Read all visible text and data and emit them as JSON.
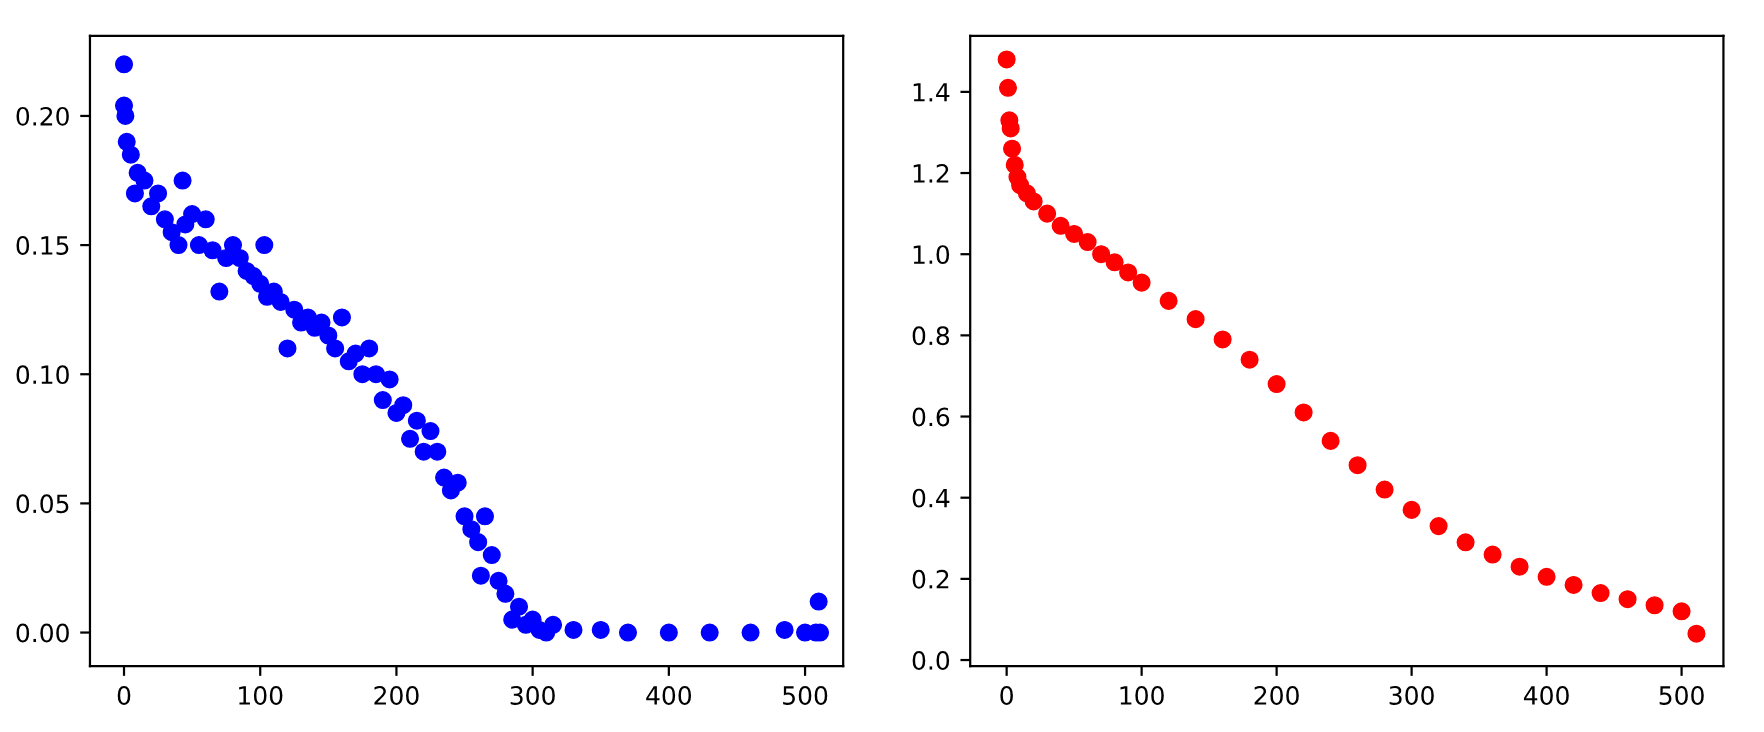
{
  "chart_data": [
    {
      "type": "scatter",
      "xlim": [
        -25,
        528
      ],
      "ylim": [
        -0.013,
        0.231
      ],
      "xticks": [
        0,
        100,
        200,
        300,
        400,
        500
      ],
      "yticks": [
        {
          "value": 0,
          "label": "0.00"
        },
        {
          "value": 0.05,
          "label": "0.05"
        },
        {
          "value": 0.1,
          "label": "0.10"
        },
        {
          "value": 0.15,
          "label": "0.15"
        },
        {
          "value": 0.2,
          "label": "0.20"
        }
      ],
      "marker": "circle",
      "grid": false,
      "legend": false,
      "series": [
        {
          "color": "#0000ff",
          "x": [
            0,
            0,
            1,
            2,
            5,
            8,
            10,
            15,
            20,
            25,
            30,
            35,
            40,
            43,
            45,
            50,
            55,
            60,
            65,
            70,
            75,
            80,
            85,
            90,
            95,
            100,
            103,
            105,
            110,
            115,
            120,
            125,
            130,
            135,
            140,
            145,
            150,
            155,
            160,
            165,
            170,
            175,
            180,
            185,
            190,
            195,
            200,
            205,
            210,
            215,
            220,
            225,
            230,
            235,
            240,
            245,
            250,
            255,
            260,
            262,
            265,
            270,
            275,
            280,
            285,
            290,
            295,
            300,
            305,
            310,
            315,
            330,
            350,
            370,
            400,
            430,
            460,
            485,
            500,
            508,
            510,
            511
          ],
          "values": [
            0.22,
            0.204,
            0.2,
            0.19,
            0.185,
            0.17,
            0.178,
            0.175,
            0.165,
            0.17,
            0.16,
            0.155,
            0.15,
            0.175,
            0.158,
            0.162,
            0.15,
            0.16,
            0.148,
            0.132,
            0.145,
            0.15,
            0.145,
            0.14,
            0.138,
            0.135,
            0.15,
            0.13,
            0.132,
            0.128,
            0.11,
            0.125,
            0.12,
            0.122,
            0.118,
            0.12,
            0.115,
            0.11,
            0.122,
            0.105,
            0.108,
            0.1,
            0.11,
            0.1,
            0.09,
            0.098,
            0.085,
            0.088,
            0.075,
            0.082,
            0.07,
            0.078,
            0.07,
            0.06,
            0.055,
            0.058,
            0.045,
            0.04,
            0.035,
            0.022,
            0.045,
            0.03,
            0.02,
            0.015,
            0.005,
            0.01,
            0.003,
            0.005,
            0.001,
            0,
            0.003,
            0.001,
            0.001,
            0,
            0,
            0,
            0,
            0.001,
            0,
            0,
            0.012,
            0
          ]
        }
      ]
    },
    {
      "type": "scatter",
      "xlim": [
        -27,
        531
      ],
      "ylim": [
        -0.015,
        1.538
      ],
      "xticks": [
        0,
        100,
        200,
        300,
        400,
        500
      ],
      "yticks": [
        {
          "value": 0,
          "label": "0.0"
        },
        {
          "value": 0.2,
          "label": "0.2"
        },
        {
          "value": 0.4,
          "label": "0.4"
        },
        {
          "value": 0.6,
          "label": "0.6"
        },
        {
          "value": 0.8,
          "label": "0.8"
        },
        {
          "value": 1.0,
          "label": "1.0"
        },
        {
          "value": 1.2,
          "label": "1.2"
        },
        {
          "value": 1.4,
          "label": "1.4"
        }
      ],
      "marker": "circle",
      "grid": false,
      "legend": false,
      "series": [
        {
          "color": "#ff0000",
          "x": [
            0,
            1,
            2,
            3,
            4,
            6,
            8,
            10,
            15,
            20,
            30,
            40,
            50,
            60,
            70,
            80,
            90,
            100,
            120,
            140,
            160,
            180,
            200,
            220,
            240,
            260,
            280,
            300,
            320,
            340,
            360,
            380,
            400,
            420,
            440,
            460,
            480,
            500,
            511
          ],
          "values": [
            1.48,
            1.41,
            1.33,
            1.31,
            1.26,
            1.22,
            1.19,
            1.17,
            1.15,
            1.13,
            1.1,
            1.07,
            1.05,
            1.03,
            1.0,
            0.98,
            0.955,
            0.93,
            0.885,
            0.84,
            0.79,
            0.74,
            0.68,
            0.61,
            0.54,
            0.48,
            0.42,
            0.37,
            0.33,
            0.29,
            0.26,
            0.23,
            0.205,
            0.185,
            0.165,
            0.15,
            0.135,
            0.12,
            0.065
          ]
        }
      ]
    }
  ]
}
